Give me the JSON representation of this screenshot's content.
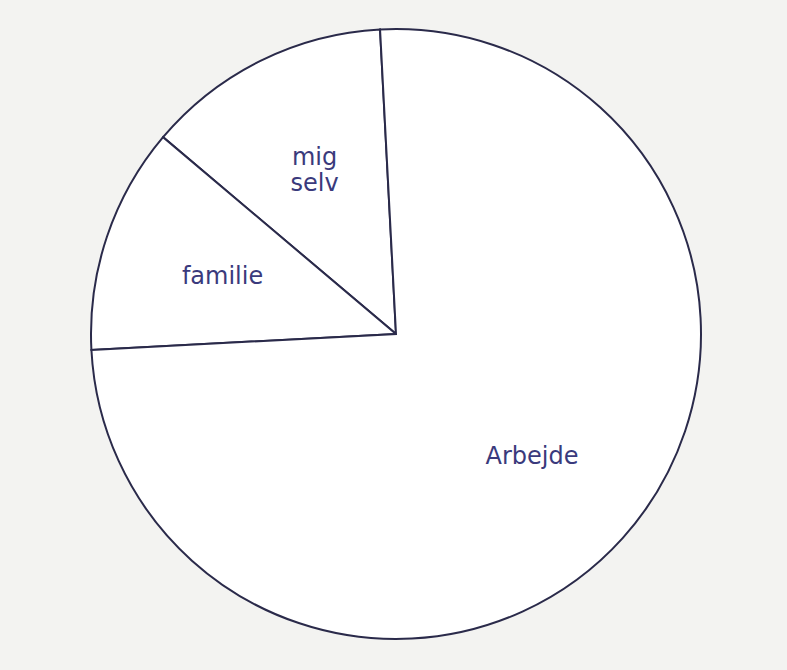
{
  "chart_data": {
    "type": "pie",
    "categories": [
      "mig selv",
      "familie",
      "Arbejde"
    ],
    "values": [
      13,
      12,
      75
    ],
    "colors": [
      "#ffffff",
      "#ffffff",
      "#ffffff"
    ],
    "legend": false,
    "data_labels": false
  }
}
